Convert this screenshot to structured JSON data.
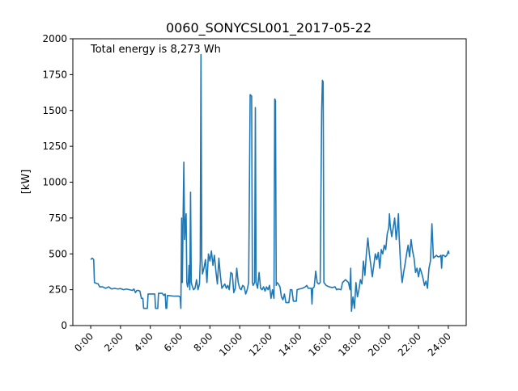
{
  "chart_data": {
    "type": "line",
    "title": "0060_SONYCSL001_2017-05-22",
    "annotation": "Total energy is 8,273 Wh",
    "xlabel": "",
    "ylabel": "[kW]",
    "xlim": [
      -1.2,
      25.2
    ],
    "ylim": [
      0,
      2000
    ],
    "x_ticks": [
      0,
      2,
      4,
      6,
      8,
      10,
      12,
      14,
      16,
      18,
      20,
      22,
      24
    ],
    "x_tick_labels": [
      "0:00",
      "2:00",
      "4:00",
      "6:00",
      "8:00",
      "10:00",
      "12:00",
      "14:00",
      "16:00",
      "18:00",
      "20:00",
      "22:00",
      "24:00"
    ],
    "y_ticks": [
      0,
      250,
      500,
      750,
      1000,
      1250,
      1500,
      1750,
      2000
    ],
    "y_tick_labels": [
      "0",
      "250",
      "500",
      "750",
      "1000",
      "1250",
      "1500",
      "1750",
      "2000"
    ],
    "grid": false,
    "series_color": "#1f77b4",
    "series": [
      {
        "name": "",
        "points": [
          [
            0.0,
            460
          ],
          [
            0.1,
            470
          ],
          [
            0.2,
            460
          ],
          [
            0.25,
            300
          ],
          [
            0.5,
            290
          ],
          [
            0.6,
            270
          ],
          [
            0.8,
            270
          ],
          [
            1.0,
            260
          ],
          [
            1.2,
            270
          ],
          [
            1.4,
            255
          ],
          [
            1.6,
            260
          ],
          [
            1.8,
            255
          ],
          [
            2.0,
            258
          ],
          [
            2.2,
            250
          ],
          [
            2.4,
            255
          ],
          [
            2.6,
            250
          ],
          [
            2.8,
            245
          ],
          [
            2.9,
            255
          ],
          [
            3.0,
            230
          ],
          [
            3.1,
            245
          ],
          [
            3.2,
            245
          ],
          [
            3.3,
            240
          ],
          [
            3.4,
            190
          ],
          [
            3.5,
            190
          ],
          [
            3.55,
            120
          ],
          [
            3.8,
            120
          ],
          [
            3.85,
            220
          ],
          [
            4.3,
            220
          ],
          [
            4.35,
            120
          ],
          [
            4.5,
            120
          ],
          [
            4.55,
            225
          ],
          [
            4.8,
            225
          ],
          [
            4.9,
            210
          ],
          [
            5.0,
            220
          ],
          [
            5.05,
            120
          ],
          [
            5.1,
            120
          ],
          [
            5.15,
            210
          ],
          [
            5.6,
            205
          ],
          [
            5.9,
            205
          ],
          [
            6.0,
            200
          ],
          [
            6.05,
            120
          ],
          [
            6.1,
            750
          ],
          [
            6.15,
            300
          ],
          [
            6.2,
            760
          ],
          [
            6.25,
            1140
          ],
          [
            6.3,
            600
          ],
          [
            6.35,
            700
          ],
          [
            6.4,
            780
          ],
          [
            6.45,
            300
          ],
          [
            6.5,
            270
          ],
          [
            6.55,
            300
          ],
          [
            6.6,
            420
          ],
          [
            6.65,
            250
          ],
          [
            6.7,
            930
          ],
          [
            6.75,
            300
          ],
          [
            6.8,
            280
          ],
          [
            6.9,
            250
          ],
          [
            7.0,
            260
          ],
          [
            7.1,
            320
          ],
          [
            7.2,
            250
          ],
          [
            7.3,
            290
          ],
          [
            7.35,
            450
          ],
          [
            7.4,
            1890
          ],
          [
            7.45,
            480
          ],
          [
            7.5,
            360
          ],
          [
            7.6,
            400
          ],
          [
            7.7,
            460
          ],
          [
            7.8,
            300
          ],
          [
            7.9,
            500
          ],
          [
            8.0,
            450
          ],
          [
            8.1,
            520
          ],
          [
            8.2,
            420
          ],
          [
            8.3,
            490
          ],
          [
            8.4,
            380
          ],
          [
            8.5,
            290
          ],
          [
            8.6,
            470
          ],
          [
            8.7,
            350
          ],
          [
            8.8,
            260
          ],
          [
            9.0,
            290
          ],
          [
            9.1,
            260
          ],
          [
            9.2,
            280
          ],
          [
            9.3,
            250
          ],
          [
            9.4,
            370
          ],
          [
            9.5,
            360
          ],
          [
            9.6,
            230
          ],
          [
            9.7,
            260
          ],
          [
            9.8,
            400
          ],
          [
            9.9,
            300
          ],
          [
            10.0,
            260
          ],
          [
            10.1,
            250
          ],
          [
            10.2,
            280
          ],
          [
            10.3,
            270
          ],
          [
            10.4,
            220
          ],
          [
            10.5,
            250
          ],
          [
            10.6,
            300
          ],
          [
            10.7,
            1610
          ],
          [
            10.8,
            1600
          ],
          [
            10.85,
            300
          ],
          [
            10.9,
            280
          ],
          [
            11.0,
            300
          ],
          [
            11.05,
            1520
          ],
          [
            11.1,
            300
          ],
          [
            11.2,
            260
          ],
          [
            11.3,
            370
          ],
          [
            11.4,
            260
          ],
          [
            11.5,
            250
          ],
          [
            11.6,
            270
          ],
          [
            11.7,
            240
          ],
          [
            11.8,
            270
          ],
          [
            11.9,
            250
          ],
          [
            12.0,
            280
          ],
          [
            12.1,
            190
          ],
          [
            12.2,
            250
          ],
          [
            12.3,
            190
          ],
          [
            12.35,
            1580
          ],
          [
            12.4,
            1570
          ],
          [
            12.45,
            280
          ],
          [
            12.5,
            300
          ],
          [
            12.6,
            290
          ],
          [
            12.7,
            270
          ],
          [
            12.8,
            200
          ],
          [
            12.9,
            180
          ],
          [
            13.0,
            220
          ],
          [
            13.1,
            160
          ],
          [
            13.3,
            160
          ],
          [
            13.4,
            250
          ],
          [
            13.5,
            250
          ],
          [
            13.6,
            170
          ],
          [
            13.8,
            170
          ],
          [
            13.85,
            250
          ],
          [
            14.0,
            255
          ],
          [
            14.2,
            260
          ],
          [
            14.4,
            270
          ],
          [
            14.5,
            280
          ],
          [
            14.6,
            260
          ],
          [
            14.8,
            260
          ],
          [
            14.85,
            150
          ],
          [
            14.9,
            260
          ],
          [
            15.0,
            270
          ],
          [
            15.1,
            380
          ],
          [
            15.2,
            300
          ],
          [
            15.3,
            290
          ],
          [
            15.4,
            300
          ],
          [
            15.5,
            1500
          ],
          [
            15.55,
            1710
          ],
          [
            15.6,
            1700
          ],
          [
            15.65,
            300
          ],
          [
            15.8,
            280
          ],
          [
            16.0,
            270
          ],
          [
            16.2,
            265
          ],
          [
            16.4,
            270
          ],
          [
            16.5,
            250
          ],
          [
            16.6,
            255
          ],
          [
            16.8,
            250
          ],
          [
            16.9,
            300
          ],
          [
            17.1,
            320
          ],
          [
            17.3,
            300
          ],
          [
            17.4,
            250
          ],
          [
            17.45,
            400
          ],
          [
            17.5,
            100
          ],
          [
            17.6,
            200
          ],
          [
            17.7,
            120
          ],
          [
            17.8,
            300
          ],
          [
            17.9,
            200
          ],
          [
            18.0,
            250
          ],
          [
            18.1,
            320
          ],
          [
            18.2,
            290
          ],
          [
            18.3,
            450
          ],
          [
            18.4,
            350
          ],
          [
            18.5,
            500
          ],
          [
            18.6,
            610
          ],
          [
            18.7,
            500
          ],
          [
            18.8,
            420
          ],
          [
            18.9,
            340
          ],
          [
            19.0,
            420
          ],
          [
            19.1,
            500
          ],
          [
            19.2,
            460
          ],
          [
            19.3,
            510
          ],
          [
            19.4,
            400
          ],
          [
            19.5,
            530
          ],
          [
            19.6,
            500
          ],
          [
            19.7,
            560
          ],
          [
            19.8,
            530
          ],
          [
            19.9,
            640
          ],
          [
            20.0,
            680
          ],
          [
            20.05,
            780
          ],
          [
            20.1,
            700
          ],
          [
            20.2,
            620
          ],
          [
            20.3,
            680
          ],
          [
            20.4,
            750
          ],
          [
            20.5,
            600
          ],
          [
            20.6,
            700
          ],
          [
            20.65,
            780
          ],
          [
            20.7,
            620
          ],
          [
            20.8,
            420
          ],
          [
            20.9,
            300
          ],
          [
            21.0,
            370
          ],
          [
            21.1,
            430
          ],
          [
            21.2,
            500
          ],
          [
            21.3,
            560
          ],
          [
            21.4,
            480
          ],
          [
            21.5,
            600
          ],
          [
            21.6,
            520
          ],
          [
            21.7,
            470
          ],
          [
            21.8,
            370
          ],
          [
            21.9,
            400
          ],
          [
            22.0,
            340
          ],
          [
            22.1,
            400
          ],
          [
            22.2,
            370
          ],
          [
            22.3,
            330
          ],
          [
            22.4,
            280
          ],
          [
            22.5,
            310
          ],
          [
            22.6,
            260
          ],
          [
            22.7,
            400
          ],
          [
            22.8,
            450
          ],
          [
            22.9,
            710
          ],
          [
            23.0,
            470
          ],
          [
            23.1,
            480
          ],
          [
            23.2,
            490
          ],
          [
            23.3,
            480
          ],
          [
            23.4,
            480
          ],
          [
            23.5,
            490
          ],
          [
            23.55,
            400
          ],
          [
            23.6,
            490
          ],
          [
            23.7,
            490
          ],
          [
            23.8,
            480
          ],
          [
            23.9,
            490
          ],
          [
            24.0,
            520
          ],
          [
            24.05,
            500
          ]
        ]
      }
    ]
  }
}
